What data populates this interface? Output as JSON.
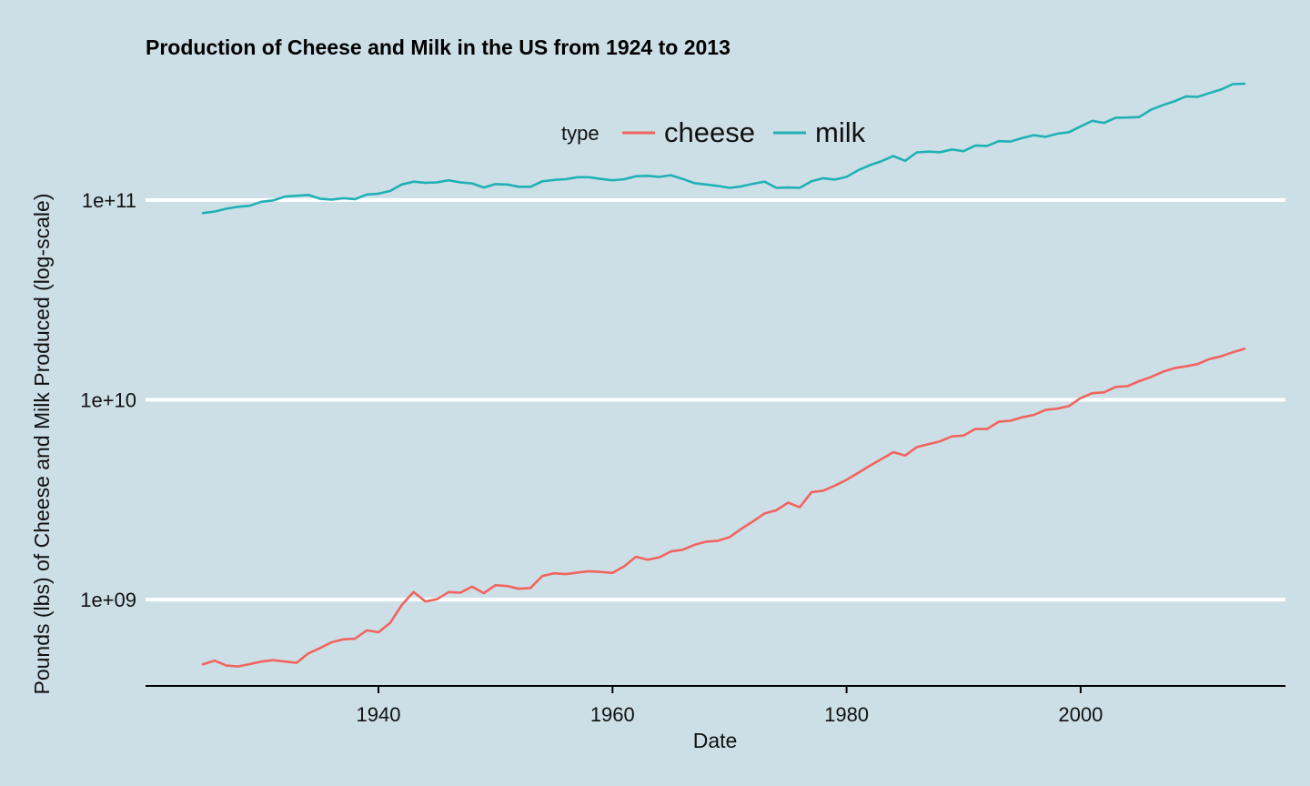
{
  "chart_data": {
    "type": "line",
    "title": "Production of Cheese and Milk in the US from 1924 to 2013",
    "xlabel": "Date",
    "ylabel": "Pounds (lbs) of Cheese and Milk Produced (log-scale)",
    "y_scale": "log10",
    "xlim": [
      1920.1,
      2017.5
    ],
    "ylim": [
      370000000,
      390000000000
    ],
    "x_ticks": [
      1940,
      1960,
      1980,
      2000
    ],
    "x_tick_labels": [
      "1940",
      "1960",
      "1980",
      "2000"
    ],
    "y_ticks": [
      1000000000,
      10000000000,
      100000000000
    ],
    "y_tick_labels": [
      "1e+09",
      "1e+10",
      "1e+11"
    ],
    "grid": "horizontal major lines",
    "legend": {
      "title": "type",
      "position": "top",
      "entries": [
        "cheese",
        "milk"
      ]
    },
    "x": [
      1925,
      1926,
      1927,
      1928,
      1929,
      1930,
      1931,
      1932,
      1933,
      1934,
      1935,
      1936,
      1937,
      1938,
      1939,
      1940,
      1941,
      1942,
      1943,
      1944,
      1945,
      1946,
      1947,
      1948,
      1949,
      1950,
      1951,
      1952,
      1953,
      1954,
      1955,
      1956,
      1957,
      1958,
      1959,
      1960,
      1961,
      1962,
      1963,
      1964,
      1965,
      1966,
      1967,
      1968,
      1969,
      1970,
      1971,
      1972,
      1973,
      1974,
      1975,
      1976,
      1977,
      1978,
      1979,
      1980,
      1981,
      1982,
      1983,
      1984,
      1985,
      1986,
      1987,
      1988,
      1989,
      1990,
      1991,
      1992,
      1993,
      1994,
      1995,
      1996,
      1997,
      1998,
      1999,
      2000,
      2001,
      2002,
      2003,
      2004,
      2005,
      2006,
      2007,
      2008,
      2009,
      2010,
      2011,
      2012,
      2013,
      2014
    ],
    "series": [
      {
        "name": "cheese",
        "color": "#f0645f",
        "values": [
          475000000,
          495000000,
          468000000,
          463000000,
          476000000,
          490000000,
          498000000,
          490000000,
          483000000,
          538000000,
          572000000,
          612000000,
          633000000,
          638000000,
          702000000,
          687000000,
          765000000,
          941000000,
          1093000000,
          980000000,
          1005000000,
          1092000000,
          1083000000,
          1161000000,
          1078000000,
          1181000000,
          1170000000,
          1133000000,
          1144000000,
          1313000000,
          1354000000,
          1342000000,
          1366000000,
          1387000000,
          1376000000,
          1360000000,
          1468000000,
          1640000000,
          1584000000,
          1629000000,
          1744000000,
          1778000000,
          1880000000,
          1950000000,
          1971000000,
          2053000000,
          2262000000,
          2465000000,
          2700000000,
          2800000000,
          3060000000,
          2900000000,
          3450000000,
          3510000000,
          3720000000,
          3980000000,
          4310000000,
          4680000000,
          5060000000,
          5470000000,
          5260000000,
          5800000000,
          6000000000,
          6200000000,
          6560000000,
          6620000000,
          7150000000,
          7140000000,
          7770000000,
          7860000000,
          8180000000,
          8400000000,
          8900000000,
          9030000000,
          9300000000,
          10200000000,
          10800000000,
          10900000000,
          11600000000,
          11700000000,
          12400000000,
          13000000000,
          13800000000,
          14400000000,
          14700000000,
          15100000000,
          16000000000,
          16500000000,
          17300000000,
          18000000000
        ]
      },
      {
        "name": "milk",
        "color": "#1fb1b6",
        "values": [
          86000000000,
          87500000000,
          90500000000,
          92500000000,
          93500000000,
          98000000000,
          99500000000,
          104000000000,
          105000000000,
          106000000000,
          101500000000,
          100500000000,
          102000000000,
          101000000000,
          106500000000,
          107500000000,
          111000000000,
          119500000000,
          123500000000,
          122000000000,
          122500000000,
          125500000000,
          122500000000,
          121000000000,
          115500000000,
          120000000000,
          119500000000,
          116500000000,
          116500000000,
          124000000000,
          126000000000,
          127000000000,
          130000000000,
          130000000000,
          127500000000,
          125500000000,
          127000000000,
          131500000000,
          132000000000,
          130500000000,
          133000000000,
          127500000000,
          121500000000,
          119500000000,
          117500000000,
          115000000000,
          117000000000,
          120500000000,
          123500000000,
          115000000000,
          115500000000,
          115000000000,
          124000000000,
          128500000000,
          126500000000,
          130500000000,
          141000000000,
          149500000000,
          156500000000,
          166000000000,
          157000000000,
          173000000000,
          174500000000,
          173500000000,
          179000000000,
          175500000000,
          187500000000,
          186500000000,
          197000000000,
          196000000000,
          204000000000,
          211000000000,
          207000000000,
          214500000000,
          218500000000,
          233500000000,
          249000000000,
          243000000000,
          258000000000,
          258500000000,
          260000000000,
          283000000000,
          298000000000,
          311500000000,
          330000000000,
          328000000000,
          343000000000,
          357000000000,
          380000000000,
          382000000000
        ]
      }
    ]
  }
}
